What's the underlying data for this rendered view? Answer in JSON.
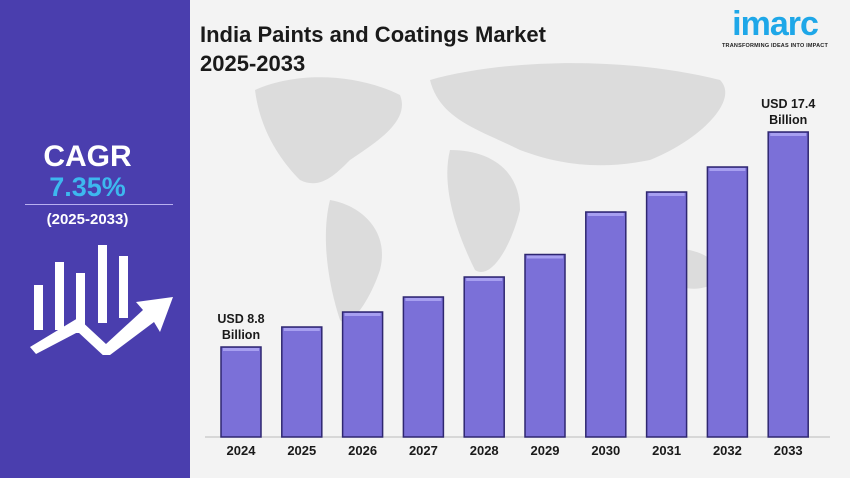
{
  "sidebar": {
    "cagr_label": "CAGR",
    "cagr_value": "7.35%",
    "cagr_period": "(2025-2033)",
    "icon": "growth-chart-arrow-icon"
  },
  "header": {
    "title_line1": "India Paints and Coatings Market",
    "title_line2": "2025-2033"
  },
  "logo": {
    "name": "imarc",
    "tagline": "TRANSFORMING IDEAS INTO IMPACT"
  },
  "colors": {
    "sidebar": "#4a3eae",
    "bar": "#7b70d8",
    "bar_border": "#2e2670",
    "cagr_value": "#3db8ef",
    "logo": "#1ea7e8"
  },
  "chart_data": {
    "type": "bar",
    "title": "India Paints and Coatings Market 2025-2033",
    "categories": [
      "2024",
      "2025",
      "2026",
      "2027",
      "2028",
      "2029",
      "2030",
      "2031",
      "2032",
      "2033"
    ],
    "values": [
      8.8,
      9.6,
      10.2,
      10.8,
      11.6,
      12.5,
      14.2,
      15.0,
      16.0,
      17.4
    ],
    "unit": "USD Billion",
    "annotations": [
      {
        "category": "2024",
        "line1": "USD 8.8",
        "line2": "Billion"
      },
      {
        "category": "2033",
        "line1": "USD 17.4",
        "line2": "Billion"
      }
    ],
    "ylim": [
      5.2,
      17.4
    ],
    "grid": false,
    "background": "world map"
  }
}
